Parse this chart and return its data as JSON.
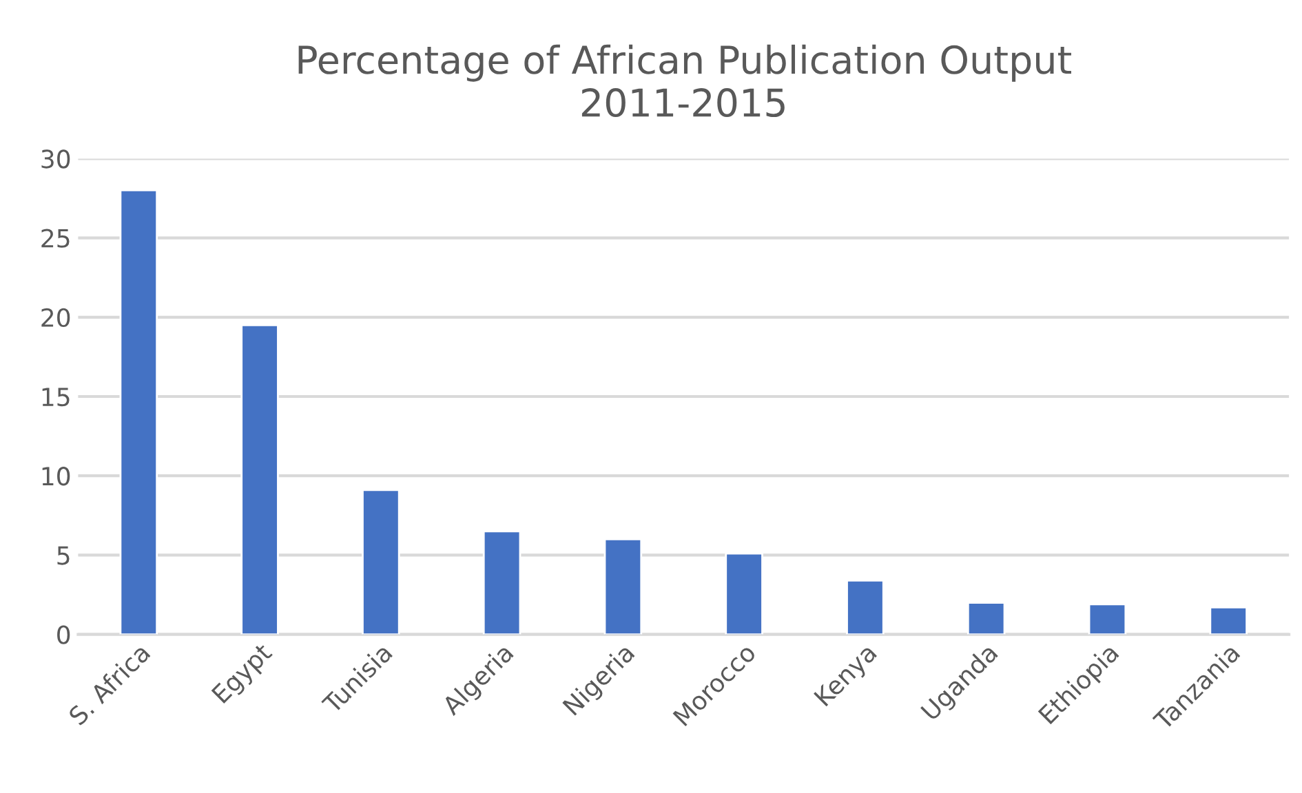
{
  "chart_data": {
    "type": "bar",
    "title": "Percentage of African Publication Output\n2011-2015",
    "categories": [
      "S. Africa",
      "Egypt",
      "Tunisia",
      "Algeria",
      "Nigeria",
      "Morocco",
      "Kenya",
      "Uganda",
      "Ethiopia",
      "Tanzania"
    ],
    "values": [
      28.0,
      19.5,
      9.1,
      6.5,
      6.0,
      5.1,
      3.4,
      2.0,
      1.9,
      1.7
    ],
    "color": "#4472c4",
    "ylim": [
      0,
      30
    ],
    "yticks": [
      0,
      5,
      10,
      15,
      20,
      25,
      30
    ],
    "grid": "y"
  }
}
